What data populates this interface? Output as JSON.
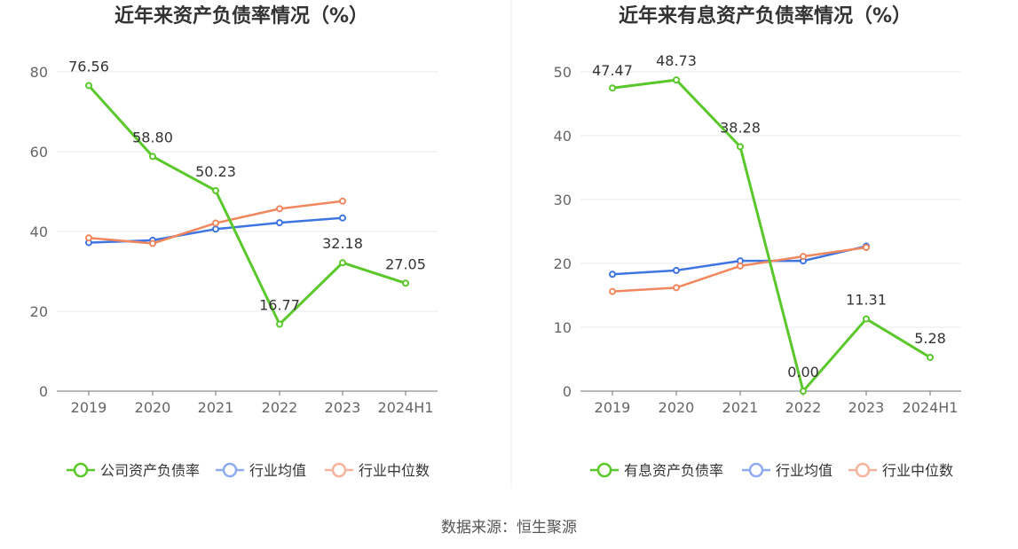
{
  "source": "数据来源：恒生聚源",
  "chart_data": [
    {
      "type": "line",
      "title": "近年来资产负债率情况（%）",
      "xlabel": "",
      "ylabel": "",
      "categories": [
        "2019",
        "2020",
        "2021",
        "2022",
        "2023",
        "2024H1"
      ],
      "ylim": [
        0,
        80
      ],
      "yticks": [
        0,
        20,
        40,
        60,
        80
      ],
      "grid": true,
      "legend": "bottom",
      "series": [
        {
          "name": "公司资产负债率",
          "color": "#5ac72b",
          "labels": true,
          "values": [
            76.56,
            58.8,
            50.23,
            16.77,
            32.18,
            27.05
          ],
          "labelText": [
            "76.56",
            "58.80",
            "50.23",
            "16.77",
            "32.18",
            "27.05"
          ]
        },
        {
          "name": "行业均值",
          "color": "#3f75e0",
          "labels": false,
          "values": [
            37.2,
            37.8,
            40.6,
            42.2,
            43.4,
            null
          ]
        },
        {
          "name": "行业中位数",
          "color": "#f0875f",
          "labels": false,
          "values": [
            38.4,
            37.0,
            42.1,
            45.7,
            47.6,
            null
          ]
        }
      ]
    },
    {
      "type": "line",
      "title": "近年来有息资产负债率情况（%）",
      "xlabel": "",
      "ylabel": "",
      "categories": [
        "2019",
        "2020",
        "2021",
        "2022",
        "2023",
        "2024H1"
      ],
      "ylim": [
        0,
        50
      ],
      "yticks": [
        0,
        10,
        20,
        30,
        40,
        50
      ],
      "grid": true,
      "legend": "bottom",
      "series": [
        {
          "name": "有息资产负债率",
          "color": "#5ac72b",
          "labels": true,
          "values": [
            47.47,
            48.73,
            38.28,
            0.0,
            11.31,
            5.28
          ],
          "labelText": [
            "47.47",
            "48.73",
            "38.28",
            "0.00",
            "11.31",
            "5.28"
          ]
        },
        {
          "name": "行业均值",
          "color": "#3f75e0",
          "labels": false,
          "values": [
            18.3,
            18.9,
            20.4,
            20.4,
            22.7,
            null
          ]
        },
        {
          "name": "行业中位数",
          "color": "#f0875f",
          "labels": false,
          "values": [
            15.6,
            16.2,
            19.6,
            21.1,
            22.5,
            null
          ]
        }
      ]
    }
  ]
}
